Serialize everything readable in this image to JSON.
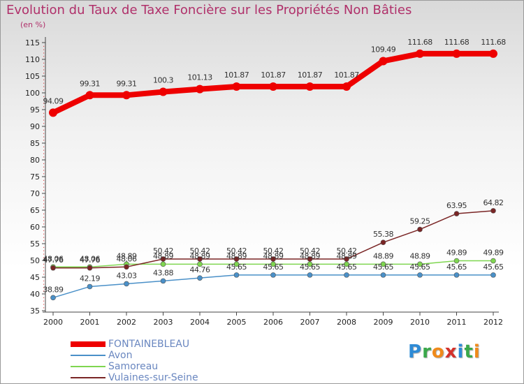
{
  "title": "Evolution du Taux de Taxe Foncière sur les Propriétés Non Bâties",
  "unit_label": "(en %)",
  "logo": {
    "text": "Proxiti",
    "letters": [
      "P",
      "r",
      "o",
      "x",
      "i",
      "t",
      "i"
    ],
    "colors": [
      "#2e8bd6",
      "#3aa84a",
      "#f08a1a",
      "#d4312b",
      "#2e8bd6",
      "#3aa84a",
      "#f08a1a"
    ]
  },
  "chart_data": {
    "type": "line",
    "x": [
      "2000",
      "2001",
      "2002",
      "2003",
      "2004",
      "2005",
      "2006",
      "2007",
      "2008",
      "2009",
      "2010",
      "2011",
      "2012"
    ],
    "ylim": [
      35,
      115
    ],
    "yticks": [
      35,
      40,
      45,
      50,
      55,
      60,
      65,
      70,
      75,
      80,
      85,
      90,
      95,
      100,
      105,
      110,
      115
    ],
    "grid": false,
    "series": [
      {
        "name": "FONTAINEBLEAU",
        "color": "#ee0000",
        "weight": "thick",
        "values": [
          94.09,
          99.31,
          99.31,
          100.3,
          101.13,
          101.87,
          101.87,
          101.87,
          101.87,
          109.49,
          111.68,
          111.68,
          111.68
        ],
        "labels": [
          "94.09",
          "99.31",
          "99.31",
          "100.3",
          "101.13",
          "101.87",
          "101.87",
          "101.87",
          "101.87",
          "109.49",
          "111.68",
          "111.68",
          "111.68"
        ]
      },
      {
        "name": "Avon",
        "color": "#4a90c8",
        "weight": "thin",
        "values": [
          38.89,
          42.19,
          43.03,
          43.88,
          44.76,
          45.65,
          45.65,
          45.65,
          45.65,
          45.65,
          45.65,
          45.65,
          45.65
        ],
        "labels": [
          "38.89",
          "42.19",
          "43.03",
          "43.88",
          "44.76",
          "45.65",
          "45.65",
          "45.65",
          "45.65",
          "45.65",
          "45.65",
          "45.65",
          "45.65"
        ]
      },
      {
        "name": "Samoreau",
        "color": "#7fd650",
        "weight": "thin",
        "values": [
          48.06,
          48.06,
          48.89,
          48.89,
          48.89,
          48.89,
          48.89,
          48.89,
          48.89,
          48.89,
          48.89,
          49.89,
          49.89
        ],
        "labels": [
          "48.06",
          "48.06",
          "48.89",
          "48.89",
          "48.89",
          "48.89",
          "48.89",
          "48.89",
          "48.89",
          "48.89",
          "48.89",
          "49.89",
          "49.89"
        ]
      },
      {
        "name": "Vulaines-sur-Seine",
        "color": "#7a2525",
        "weight": "thin",
        "values": [
          47.76,
          47.76,
          48.06,
          50.42,
          50.42,
          50.42,
          50.42,
          50.42,
          50.42,
          55.38,
          59.25,
          63.95,
          64.82
        ],
        "labels": [
          "47.76",
          "47.76",
          "48.06",
          "50.42",
          "50.42",
          "50.42",
          "50.42",
          "50.42",
          "50.42",
          "55.38",
          "59.25",
          "63.95",
          "64.82"
        ]
      }
    ]
  }
}
